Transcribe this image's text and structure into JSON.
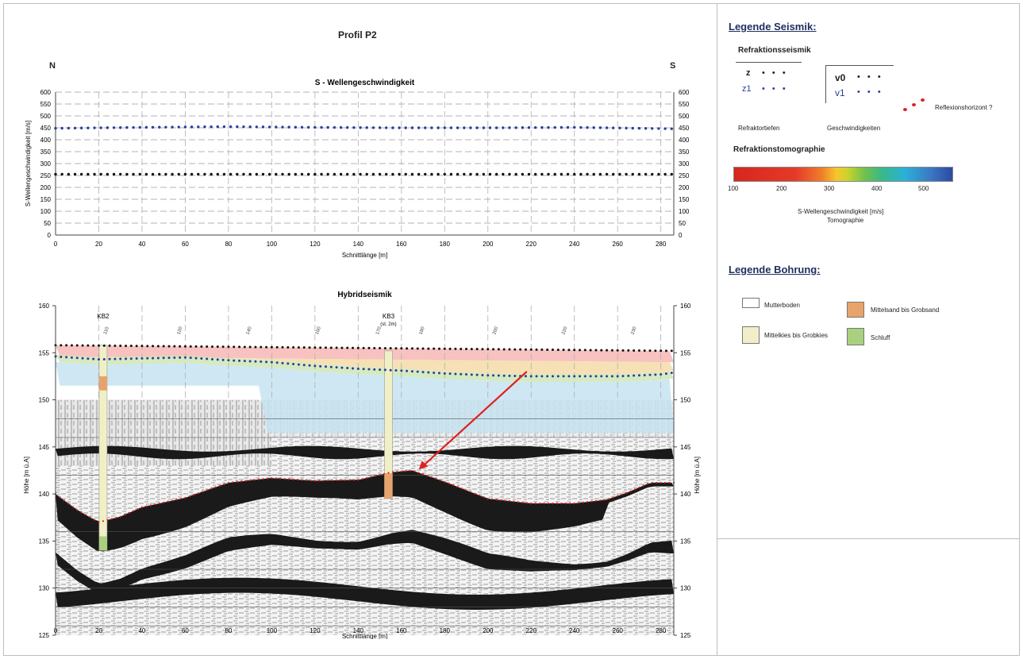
{
  "title": "Profil P2",
  "orientation": {
    "left": "N",
    "right": "S"
  },
  "chart_data": [
    {
      "type": "scatter",
      "title": "S - Wellengeschwindigkeit",
      "xlabel": "Schnittlänge [m]",
      "ylabel": "S-Wellengeschwindigkeit [m/s]",
      "xlim": [
        0,
        286
      ],
      "ylim": [
        0,
        600
      ],
      "xticks": [
        0,
        20,
        40,
        60,
        80,
        100,
        120,
        140,
        160,
        180,
        200,
        220,
        240,
        260,
        280
      ],
      "yticks": [
        0,
        50,
        100,
        150,
        200,
        250,
        300,
        350,
        400,
        450,
        500,
        550,
        600
      ],
      "series": [
        {
          "name": "v1",
          "color": "#2a3f9a",
          "x": [
            0,
            40,
            80,
            120,
            160,
            200,
            240,
            286
          ],
          "y": [
            448,
            452,
            455,
            452,
            450,
            450,
            452,
            446
          ]
        },
        {
          "name": "v0",
          "color": "#111111",
          "x": [
            0,
            286
          ],
          "y": [
            255,
            255
          ]
        }
      ]
    },
    {
      "type": "line",
      "title": "Hybridseismik",
      "xlabel": "Schnittlänge [m]",
      "ylabel": "Höhe [m ü.A]",
      "xlim": [
        0,
        286
      ],
      "ylim": [
        125,
        160
      ],
      "xticks": [
        0,
        20,
        40,
        60,
        80,
        100,
        120,
        140,
        160,
        180,
        200,
        220,
        240,
        260,
        280
      ],
      "yticks": [
        125,
        130,
        135,
        140,
        145,
        150,
        155,
        160
      ],
      "series": [
        {
          "name": "z",
          "color": "#111111",
          "x": [
            0,
            286
          ],
          "y": [
            155.8,
            155.2
          ]
        },
        {
          "name": "z1",
          "color": "#2a3f9a",
          "x": [
            0,
            20,
            40,
            60,
            80,
            100,
            120,
            140,
            160,
            180,
            200,
            220,
            240,
            260,
            280,
            286
          ],
          "y": [
            154.6,
            154.3,
            154.4,
            154.5,
            154.2,
            154.0,
            153.6,
            153.3,
            153.1,
            152.8,
            152.6,
            152.5,
            152.5,
            152.5,
            152.7,
            152.9
          ]
        },
        {
          "name": "Reflexionshorizont",
          "color": "#e02020",
          "x": [
            0,
            10,
            20,
            30,
            40,
            60,
            80,
            100,
            120,
            140,
            155,
            165,
            180,
            200,
            220,
            240,
            255,
            265,
            275,
            286
          ],
          "y": [
            140.0,
            138.3,
            137.0,
            137.6,
            138.6,
            139.6,
            141.2,
            141.7,
            141.4,
            141.5,
            142.3,
            142.5,
            141.3,
            139.5,
            139.0,
            139.0,
            139.4,
            140.2,
            141.2,
            141.2
          ]
        }
      ],
      "boreholes": [
        {
          "label": "KB2",
          "x": 22,
          "top": 155.8,
          "bottom": 134.0
        },
        {
          "label": "KB3\n(st. 2m)",
          "x": 154,
          "top": 155.2,
          "bottom": 139.5
        }
      ]
    }
  ],
  "legend_seismik": {
    "heading": "Legende Seismik:",
    "refraktion_title": "Refraktionsseismik",
    "z": "z",
    "z1": "z1",
    "v0": "v0",
    "v1": "v1",
    "refraktortiefen": "Refraktortiefen",
    "geschwindigkeiten": "Geschwindigkeiten",
    "reflexion": "Reflexionshorizont ?",
    "tomographie_title": "Refraktionstomographie",
    "scale_ticks": [
      "100",
      "200",
      "300",
      "400",
      "500"
    ],
    "scale_label_1": "S-Wellengeschwindigkeit [m/s]",
    "scale_label_2": "Tomographie"
  },
  "legend_bohrung": {
    "heading": "Legende Bohrung:",
    "items": [
      {
        "label": "Mutterboden"
      },
      {
        "label": "Mittelsand bis Grobsand"
      },
      {
        "label": "Mittelkies bis Grobkies"
      },
      {
        "label": "Schluff"
      }
    ]
  }
}
